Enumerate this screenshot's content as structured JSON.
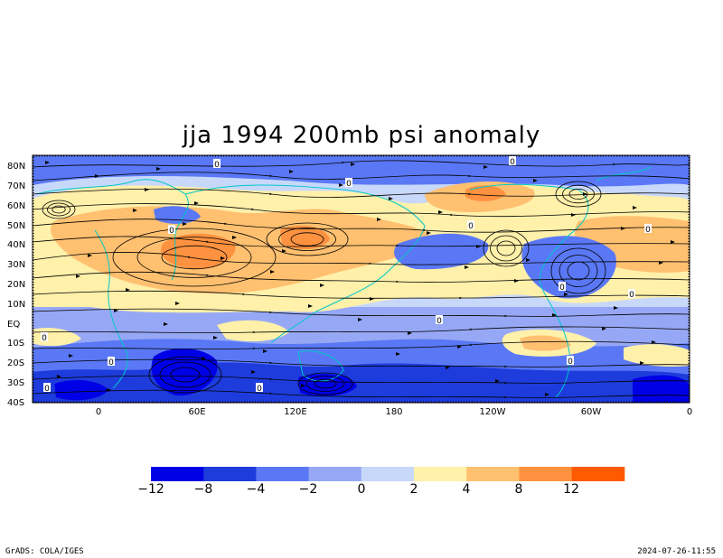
{
  "title": "jja 1994 200mb psi anomaly",
  "lat_labels": [
    "80N",
    "70N",
    "60N",
    "50N",
    "40N",
    "30N",
    "20N",
    "10N",
    "EQ",
    "10S",
    "20S",
    "30S",
    "40S"
  ],
  "lon_labels": [
    "0",
    "60E",
    "120E",
    "180",
    "120W",
    "60W",
    "0"
  ],
  "colorbar": {
    "labels": [
      "−12",
      "−8",
      "−4",
      "−2",
      "0",
      "2",
      "4",
      "8",
      "12"
    ],
    "colors": [
      "#0000e6",
      "#1e3cdc",
      "#5a78f5",
      "#96a8f5",
      "#c8d8fa",
      "#fff0aa",
      "#ffc070",
      "#ff9240",
      "#ff5a00"
    ]
  },
  "contour_labels": [
    "0",
    "0",
    "0",
    "0",
    "0",
    "0",
    "0",
    "0",
    "0",
    "0",
    "0",
    "0",
    "0",
    "0"
  ],
  "footer_left": "GrADS: COLA/IGES",
  "footer_right": "2024-07-26-11:55"
}
